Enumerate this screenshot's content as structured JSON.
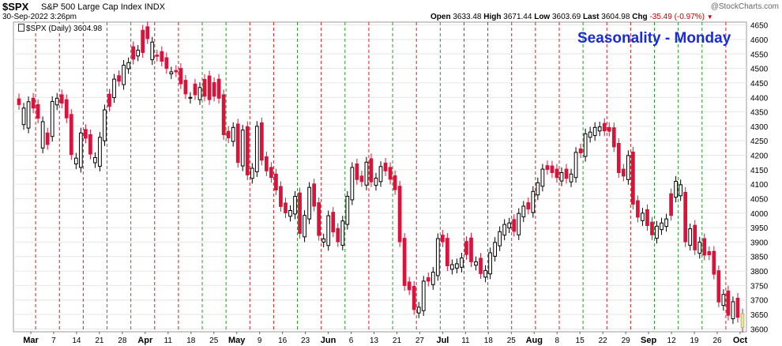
{
  "header": {
    "symbol": "$SPX",
    "description": "S&P 500 Large Cap Index",
    "exchange": "INDX",
    "date": "30-Sep-2022 3:26pm",
    "watermark": "@StockCharts.com",
    "open_label": "Open",
    "open": "3633.48",
    "high_label": "High",
    "high": "3671.44",
    "low_label": "Low",
    "low": "3603.69",
    "last_label": "Last",
    "last": "3604.98",
    "chg_label": "Chg",
    "chg": "-35.49 (-0.97%)"
  },
  "legend": {
    "text": "$SPX (Daily) 3604.98"
  },
  "annotation": "Seasonality - Monday",
  "colors": {
    "up": "#000000",
    "down": "#d8143c",
    "monday_line_down": "#d62020",
    "monday_line_up": "#2a9a2a",
    "last_candle": "#e6e6a0"
  },
  "chart_data": {
    "type": "candlestick",
    "title": "Seasonality - Monday",
    "ylim": [
      3590,
      4660
    ],
    "y_ticks": [
      3600,
      3650,
      3700,
      3750,
      3800,
      3850,
      3900,
      3950,
      4000,
      4050,
      4100,
      4150,
      4200,
      4250,
      4300,
      4350,
      4400,
      4450,
      4500,
      4550,
      4600,
      4650
    ],
    "x_ticks": [
      "Mar",
      "7",
      "14",
      "21",
      "28",
      "Apr",
      "11",
      "18",
      "25",
      "May",
      "9",
      "16",
      "23",
      "Jun",
      "6",
      "13",
      "21",
      "27",
      "Jul",
      "11",
      "18",
      "25",
      "Aug",
      "8",
      "15",
      "22",
      "29",
      "Sep",
      "12",
      "19",
      "26",
      "Oct"
    ],
    "monday_lines": [
      {
        "date": "Mar 7",
        "dir": "down"
      },
      {
        "date": "Mar 14",
        "dir": "down"
      },
      {
        "date": "Mar 21",
        "dir": "down"
      },
      {
        "date": "Mar 28",
        "dir": "up"
      },
      {
        "date": "Apr 4",
        "dir": "up"
      },
      {
        "date": "Apr 11",
        "dir": "down"
      },
      {
        "date": "Apr 18",
        "dir": "down"
      },
      {
        "date": "Apr 25",
        "dir": "up"
      },
      {
        "date": "May 2",
        "dir": "up"
      },
      {
        "date": "May 9",
        "dir": "down"
      },
      {
        "date": "May 16",
        "dir": "down"
      },
      {
        "date": "May 23",
        "dir": "up"
      },
      {
        "date": "May 31",
        "dir": "down"
      },
      {
        "date": "Jun 6",
        "dir": "up"
      },
      {
        "date": "Jun 13",
        "dir": "down"
      },
      {
        "date": "Jun 21",
        "dir": "up"
      },
      {
        "date": "Jun 27",
        "dir": "down"
      },
      {
        "date": "Jul 5",
        "dir": "up"
      },
      {
        "date": "Jul 11",
        "dir": "down"
      },
      {
        "date": "Jul 18",
        "dir": "down"
      },
      {
        "date": "Jul 25",
        "dir": "down"
      },
      {
        "date": "Aug 1",
        "dir": "down"
      },
      {
        "date": "Aug 8",
        "dir": "down"
      },
      {
        "date": "Aug 15",
        "dir": "up"
      },
      {
        "date": "Aug 22",
        "dir": "down"
      },
      {
        "date": "Aug 29",
        "dir": "down"
      },
      {
        "date": "Sep 6",
        "dir": "up"
      },
      {
        "date": "Sep 12",
        "dir": "up"
      },
      {
        "date": "Sep 19",
        "dir": "up"
      },
      {
        "date": "Sep 26",
        "dir": "down"
      }
    ],
    "closes": [
      4375,
      4306,
      4385,
      4363,
      4328,
      4225,
      4277,
      4386,
      4397,
      4380,
      4329,
      4202,
      4170,
      4277,
      4259,
      4204,
      4174,
      4262,
      4357,
      4411,
      4463,
      4456,
      4511,
      4520,
      4575,
      4543,
      4632,
      4603,
      4530,
      4546,
      4525,
      4500,
      4481,
      4488,
      4447,
      4412,
      4397,
      4446,
      4392,
      4462,
      4392,
      4451,
      4397,
      4271,
      4260,
      4296,
      4175,
      4287,
      4132,
      4155,
      4300,
      4183,
      4146,
      4123,
      4080,
      4023,
      4001,
      4009,
      4058,
      3930,
      3992,
      4089,
      4024,
      3923,
      3900,
      3991,
      3935,
      3901,
      3973,
      4058,
      4158,
      4116,
      4109,
      4176,
      4108,
      4121,
      4161,
      4146,
      4117,
      4081,
      3901,
      3750,
      3735,
      3667,
      3675,
      3765,
      3765,
      3796,
      3912,
      3901,
      3818,
      3822,
      3825,
      3845,
      3902,
      3832,
      3832,
      3791,
      3802,
      3863,
      3899,
      3936,
      3961,
      3966,
      3937,
      3999,
      4024,
      4014,
      4075,
      4105,
      4152,
      4151,
      4140,
      4123,
      4140,
      4120,
      4135,
      4210,
      4208,
      4274,
      4280,
      4296,
      4298,
      4284,
      4283,
      4229,
      4140,
      4128,
      4199,
      4031,
      3986,
      4000,
      3957,
      3925,
      3955,
      3966,
      3980,
      4067,
      4110,
      4060,
      3901,
      3946,
      3873,
      3900,
      3855,
      3856,
      3789,
      3693,
      3719,
      3647,
      3694,
      3640,
      3605
    ],
    "down_flags": [
      1,
      0,
      0,
      1,
      1,
      0,
      1,
      0,
      0,
      1,
      1,
      1,
      0,
      0,
      1,
      1,
      0,
      0,
      0,
      1,
      0,
      1,
      0,
      0,
      1,
      0,
      1,
      1,
      0,
      1,
      1,
      1,
      0,
      1,
      1,
      1,
      0,
      1,
      0,
      1,
      1,
      1,
      1,
      1,
      1,
      0,
      1,
      0,
      1,
      0,
      0,
      1,
      1,
      1,
      1,
      1,
      1,
      0,
      0,
      1,
      0,
      0,
      1,
      1,
      0,
      0,
      1,
      1,
      0,
      0,
      0,
      1,
      1,
      0,
      1,
      0,
      0,
      1,
      1,
      1,
      1,
      1,
      1,
      1,
      0,
      0,
      1,
      0,
      0,
      1,
      1,
      0,
      0,
      0,
      1,
      1,
      0,
      1,
      0,
      0,
      0,
      0,
      0,
      0,
      1,
      0,
      0,
      1,
      0,
      0,
      0,
      1,
      1,
      1,
      0,
      1,
      0,
      0,
      1,
      0,
      0,
      0,
      0,
      1,
      1,
      1,
      1,
      1,
      0,
      1,
      1,
      0,
      1,
      1,
      0,
      0,
      0,
      1,
      0,
      0,
      1,
      0,
      1,
      0,
      1,
      1,
      1,
      1,
      0,
      1,
      0,
      1,
      1
    ]
  }
}
